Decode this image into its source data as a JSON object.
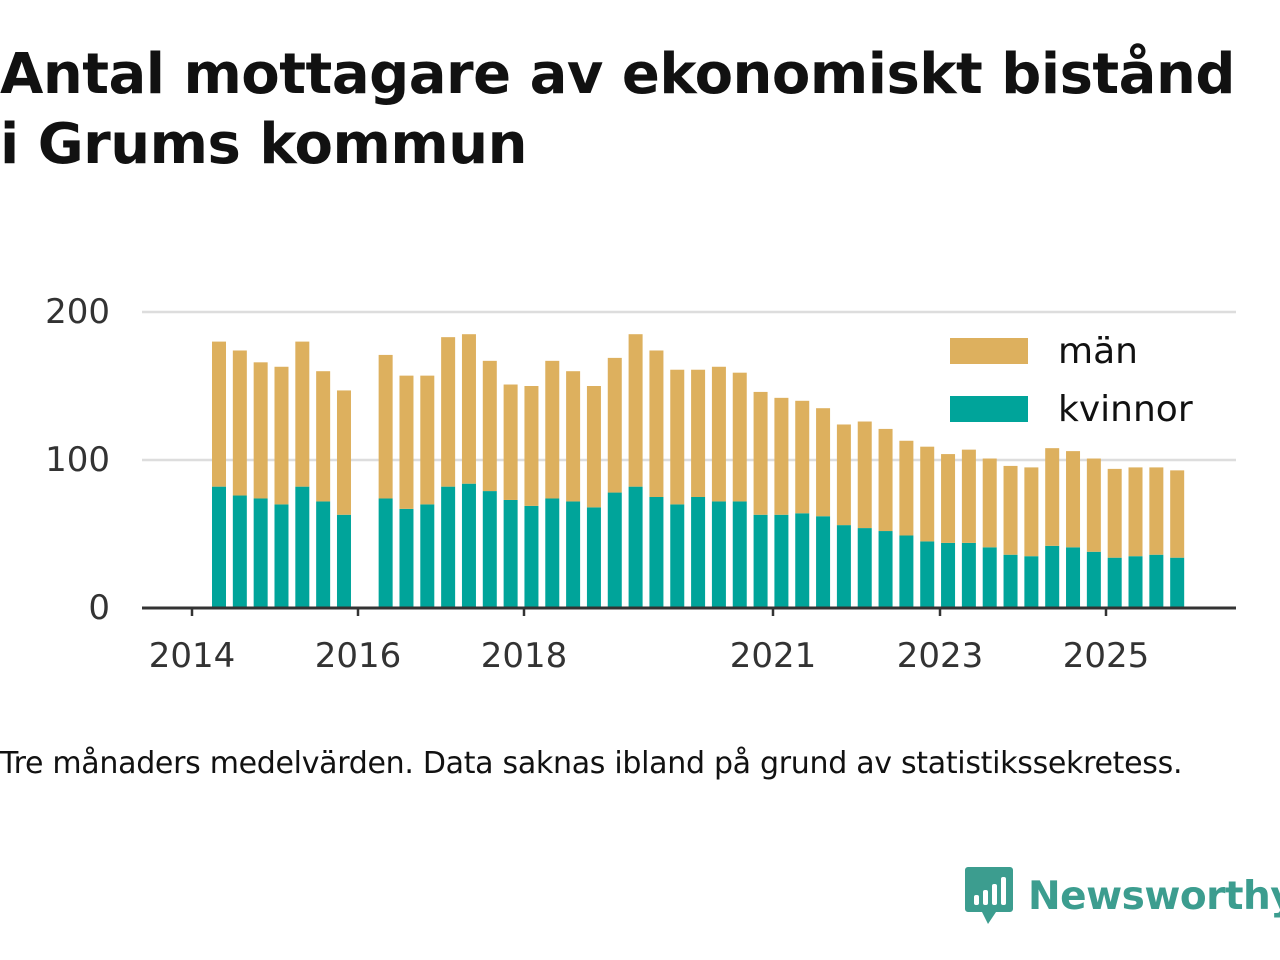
{
  "header": {
    "title_line1": "Antal mottagare av ekonomiskt bistånd",
    "title_line2": "i Grums kommun"
  },
  "footer": {
    "note": "Tre månaders medelvärden. Data saknas ibland på grund av statistikssekretess.",
    "brand": "Newsworthy"
  },
  "colors": {
    "kvinnor": "#00a49a",
    "man": "#ddb05e",
    "grid": "#dddddd",
    "axis": "#333333",
    "brand": "#3c9d8f"
  },
  "chart_data": {
    "type": "bar",
    "stacked": true,
    "title": "Antal mottagare av ekonomiskt bistånd i Grums kommun",
    "ylim": [
      0,
      200
    ],
    "yticks": [
      0,
      100,
      200
    ],
    "x_tick_labels": [
      "2014",
      "2016",
      "2018",
      "2021",
      "2023",
      "2025"
    ],
    "grid": true,
    "legend_position": "top-right",
    "categories": [
      "2014 Q2",
      "2014 Q3",
      "2014 Q4",
      "2015 Q1",
      "2015 Q2",
      "2015 Q3",
      "2015 Q4",
      "2016 Q1",
      "2016 Q2",
      "2016 Q3",
      "2016 Q4",
      "2017 Q1",
      "2017 Q2",
      "2017 Q3",
      "2017 Q4",
      "2018 Q1",
      "2018 Q2",
      "2018 Q3",
      "2018 Q4",
      "2019 Q1",
      "2019 Q2",
      "2019 Q3",
      "2019 Q4",
      "2020 Q1",
      "2020 Q2",
      "2020 Q3",
      "2020 Q4",
      "2021 Q1",
      "2021 Q2",
      "2021 Q3",
      "2021 Q4",
      "2022 Q1",
      "2022 Q2",
      "2022 Q3",
      "2022 Q4",
      "2023 Q1",
      "2023 Q2",
      "2023 Q3",
      "2023 Q4",
      "2024 Q1",
      "2024 Q2",
      "2024 Q3",
      "2024 Q4",
      "2025 Q1",
      "2025 Q2",
      "2025 Q3",
      "2025 Q4",
      "2026 Q1"
    ],
    "series": [
      {
        "name": "kvinnor",
        "values": [
          82,
          76,
          74,
          70,
          82,
          72,
          63,
          null,
          74,
          67,
          70,
          82,
          84,
          79,
          73,
          69,
          74,
          72,
          68,
          78,
          82,
          75,
          70,
          75,
          72,
          72,
          63,
          63,
          64,
          62,
          56,
          54,
          52,
          49,
          45,
          44,
          44,
          41,
          36,
          35,
          42,
          41,
          38,
          34,
          35,
          36,
          34,
          null
        ]
      },
      {
        "name": "män",
        "values": [
          98,
          98,
          92,
          93,
          98,
          88,
          84,
          null,
          97,
          90,
          87,
          101,
          101,
          88,
          78,
          81,
          93,
          88,
          82,
          91,
          103,
          99,
          91,
          86,
          91,
          87,
          83,
          79,
          76,
          73,
          68,
          72,
          69,
          64,
          64,
          60,
          63,
          60,
          60,
          60,
          66,
          65,
          63,
          60,
          60,
          59,
          59,
          null
        ]
      }
    ]
  }
}
